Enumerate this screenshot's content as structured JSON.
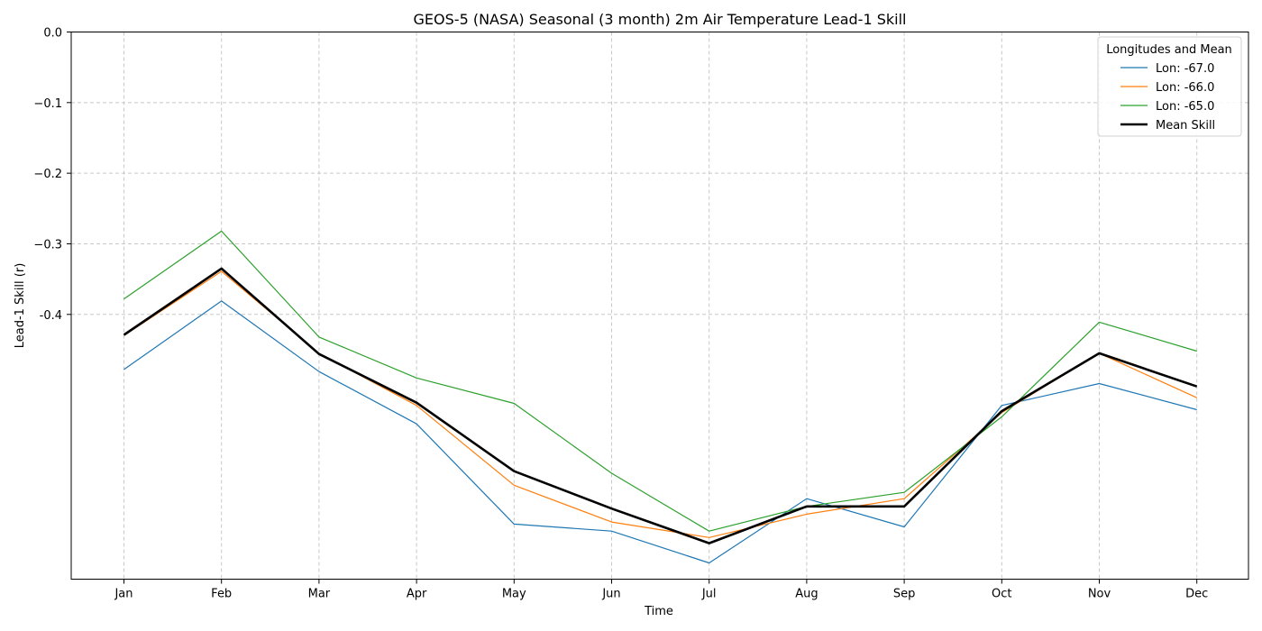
{
  "chart_data": {
    "type": "line",
    "title": "GEOS-5 (NASA) Seasonal (3 month) 2m Air Temperature Lead-1 Skill",
    "xlabel": "Time",
    "ylabel": "Lead-1 Skill (r)",
    "categories": [
      "Jan",
      "Feb",
      "Mar",
      "Apr",
      "May",
      "Jun",
      "Jul",
      "Aug",
      "Sep",
      "Oct",
      "Nov",
      "Dec"
    ],
    "yticks": [
      0.0,
      -0.1,
      -0.2,
      -0.3,
      -0.4
    ],
    "ytick_labels": [
      "0.0",
      "−0.1",
      "−0.2",
      "−0.3",
      "-0.4"
    ],
    "ylim": [
      -0.775,
      0.0
    ],
    "grid": true,
    "legend": {
      "title": "Longitudes and Mean",
      "position": "top-right"
    },
    "series": [
      {
        "name": "Lon: -67.0",
        "color": "#1f77b4",
        "width": 1.2,
        "values": [
          -0.478,
          -0.381,
          -0.481,
          -0.555,
          -0.697,
          -0.707,
          -0.752,
          -0.661,
          -0.701,
          -0.529,
          -0.498,
          -0.535
        ]
      },
      {
        "name": "Lon: -66.0",
        "color": "#ff7f0e",
        "width": 1.2,
        "values": [
          -0.43,
          -0.339,
          -0.455,
          -0.529,
          -0.642,
          -0.694,
          -0.716,
          -0.683,
          -0.661,
          -0.539,
          -0.455,
          -0.518
        ]
      },
      {
        "name": "Lon: -65.0",
        "color": "#2ca02c",
        "width": 1.2,
        "values": [
          -0.378,
          -0.282,
          -0.432,
          -0.49,
          -0.526,
          -0.625,
          -0.707,
          -0.672,
          -0.652,
          -0.545,
          -0.411,
          -0.452
        ]
      },
      {
        "name": "Mean Skill",
        "color": "#000000",
        "width": 2.6,
        "values": [
          -0.429,
          -0.335,
          -0.456,
          -0.525,
          -0.622,
          -0.675,
          -0.724,
          -0.672,
          -0.672,
          -0.537,
          -0.455,
          -0.502
        ]
      }
    ]
  }
}
